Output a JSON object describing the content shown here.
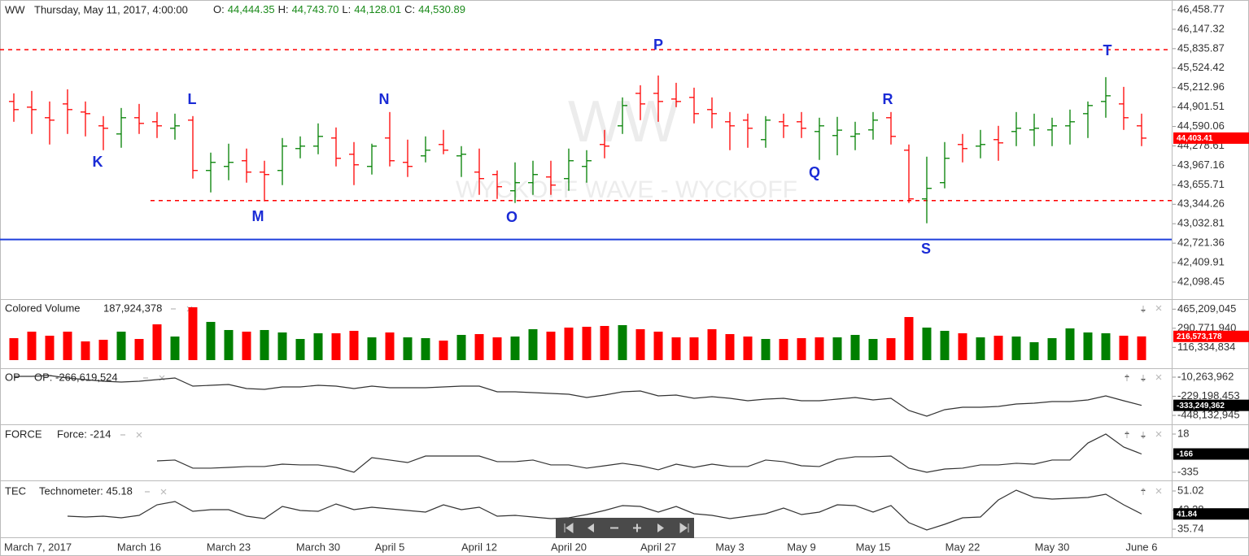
{
  "chart_data": [
    {
      "type": "ohlc",
      "title": "WW",
      "subtitle": "Thursday, May 11, 2017, 4:00:00",
      "readout": [
        {
          "name": "O:",
          "text": "44,444.35"
        },
        {
          "name": "H:",
          "text": "44,743.70"
        },
        {
          "name": "L:",
          "text": "44,128.01"
        },
        {
          "name": "C:",
          "text": "44,530.89"
        }
      ],
      "watermark": [
        "WW",
        "WYCKOFF WAVE - WYCKOFF"
      ],
      "up_color": "#008000",
      "down_color": "#ff0000",
      "open": [
        44990,
        44899,
        44730,
        44951,
        44821,
        44600,
        44470,
        44730,
        44665,
        44561,
        44691,
        43885,
        43950,
        44041,
        43859,
        43885,
        44236,
        44275,
        44405,
        44145,
        43950,
        44405,
        44015,
        44119,
        44301,
        44119,
        43859,
        43820,
        43560,
        43690,
        43781,
        43755,
        43950,
        44301,
        44600,
        45120,
        45120,
        45029,
        45055,
        44860,
        44665,
        44691,
        44379,
        44665,
        44665,
        44509,
        44444.35,
        44431,
        44535,
        44730,
        44210,
        43430,
        43690,
        44301,
        44275,
        44379,
        44509,
        44535,
        44535,
        44600,
        44795,
        44990,
        44951,
        44600
      ],
      "high": [
        45120,
        45159,
        44990,
        45185,
        44990,
        44756,
        44886,
        44951,
        44821,
        44795,
        44756,
        44171,
        44314,
        44236,
        44041,
        44405,
        44431,
        44639,
        44574,
        44340,
        44314,
        44821,
        44379,
        44431,
        44535,
        44275,
        44236,
        43885,
        44015,
        44041,
        44041,
        44236,
        44210,
        44535,
        45055,
        45250,
        45406,
        45289,
        45211,
        45055,
        44821,
        44795,
        44756,
        44795,
        44821,
        44730,
        44743.7,
        44665,
        44821,
        44821,
        44301,
        44106,
        44340,
        44470,
        44535,
        44600,
        44821,
        44795,
        44730,
        44860,
        44990,
        45380,
        45224,
        44795
      ],
      "low": [
        44665,
        44470,
        44301,
        44470,
        44431,
        44210,
        44249,
        44470,
        44405,
        44379,
        43755,
        43534,
        43729,
        43690,
        43391,
        43651,
        44080,
        44145,
        43950,
        43651,
        43820,
        43950,
        43781,
        44015,
        44145,
        43781,
        43495,
        43430,
        43365,
        43495,
        43495,
        43560,
        43690,
        44080,
        44470,
        44691,
        44665,
        44899,
        44639,
        44561,
        44210,
        44249,
        44249,
        44405,
        44405,
        44054,
        44128.01,
        44210,
        44379,
        44301,
        43365,
        43040,
        43599,
        44015,
        44080,
        44041,
        44275,
        44275,
        44275,
        44301,
        44405,
        44730,
        44535,
        44275
      ],
      "close": [
        44860,
        44860,
        44691,
        44860,
        44795,
        44561,
        44730,
        44639,
        44600,
        44600,
        43885,
        44015,
        44015,
        43859,
        43820,
        44275,
        44275,
        44431,
        44080,
        43976,
        44275,
        44041,
        43950,
        44210,
        44210,
        44145,
        43755,
        43625,
        43690,
        43820,
        43651,
        44041,
        44041,
        44275,
        44925,
        44951,
        44990,
        44990,
        44795,
        44795,
        44600,
        44561,
        44691,
        44600,
        44561,
        44600,
        44530.89,
        44470,
        44691,
        44431,
        43430,
        43599,
        44080,
        44236,
        44301,
        44327,
        44561,
        44561,
        44600,
        44665,
        44925,
        45081,
        44730,
        44403.41
      ],
      "last_label": "44,403.41",
      "last_color": "#ff0000",
      "hlines": [
        {
          "value": 45820,
          "color": "#ff0000",
          "dashed": true
        },
        {
          "value": 43404,
          "color": "#ff0000",
          "dashed": true
        },
        {
          "value": 42780,
          "color": "#1f3fdc",
          "dashed": false
        }
      ],
      "annotations": [
        "K",
        "L",
        "M",
        "N",
        "O",
        "P",
        "Q",
        "R",
        "S",
        "T"
      ],
      "ylim": [
        41838.1,
        46614.96
      ],
      "yticks": [
        {
          "value": 46458.77,
          "label": "46,458.77"
        },
        {
          "value": 46147.32,
          "label": "46,147.32"
        },
        {
          "value": 45835.87,
          "label": "45,835.87"
        },
        {
          "value": 45524.42,
          "label": "45,524.42"
        },
        {
          "value": 45212.96,
          "label": "45,212.96"
        },
        {
          "value": 44901.51,
          "label": "44,901.51"
        },
        {
          "value": 44590.06,
          "label": "44,590.06"
        },
        {
          "value": 44278.61,
          "label": "44,278.61"
        },
        {
          "value": 43967.16,
          "label": "43,967.16"
        },
        {
          "value": 43655.71,
          "label": "43,655.71"
        },
        {
          "value": 43344.26,
          "label": "43,344.26"
        },
        {
          "value": 43032.81,
          "label": "43,032.81"
        },
        {
          "value": 42721.36,
          "label": "42,721.36"
        },
        {
          "value": 42409.91,
          "label": "42,409.91"
        },
        {
          "value": 42098.45,
          "label": "42,098.45"
        }
      ]
    },
    {
      "type": "bar",
      "title": "Colored Volume",
      "readout": "187,924,378",
      "values": [
        200400000,
        259800000,
        222700000,
        259800000,
        170700000,
        185600000,
        259800000,
        193000000,
        326600000,
        215300000,
        482500000,
        348900000,
        274700000,
        259800000,
        274700000,
        252400000,
        193000000,
        245000000,
        245000000,
        267200000,
        207800000,
        252400000,
        207800000,
        200400000,
        178200000,
        230100000,
        237500000,
        207800000,
        215300000,
        282100000,
        259800000,
        296900000,
        304300000,
        311800000,
        319200000,
        282100000,
        259800000,
        207800000,
        207800000,
        282100000,
        237500000,
        215300000,
        193000000,
        193000000,
        200400000,
        207800000,
        207800000,
        230100000,
        193000000,
        200400000,
        393400000,
        296900000,
        267200000,
        245000000,
        207800000,
        222700000,
        215300000,
        163300000,
        200400000,
        289500000,
        252400000,
        245000000,
        222700000,
        216573178
      ],
      "colors": [
        "#ff0000",
        "#ff0000",
        "#ff0000",
        "#ff0000",
        "#ff0000",
        "#ff0000",
        "#008000",
        "#ff0000",
        "#ff0000",
        "#008000",
        "#ff0000",
        "#008000",
        "#008000",
        "#ff0000",
        "#008000",
        "#008000",
        "#008000",
        "#008000",
        "#ff0000",
        "#ff0000",
        "#008000",
        "#ff0000",
        "#008000",
        "#008000",
        "#ff0000",
        "#008000",
        "#ff0000",
        "#ff0000",
        "#008000",
        "#008000",
        "#ff0000",
        "#ff0000",
        "#ff0000",
        "#ff0000",
        "#008000",
        "#ff0000",
        "#ff0000",
        "#ff0000",
        "#ff0000",
        "#ff0000",
        "#ff0000",
        "#ff0000",
        "#008000",
        "#ff0000",
        "#ff0000",
        "#ff0000",
        "#008000",
        "#008000",
        "#008000",
        "#ff0000",
        "#ff0000",
        "#008000",
        "#008000",
        "#ff0000",
        "#008000",
        "#ff0000",
        "#008000",
        "#008000",
        "#008000",
        "#008000",
        "#008000",
        "#008000",
        "#ff0000",
        "#ff0000"
      ],
      "last_label": "216,573,178",
      "last_color": "#ff0000",
      "ylim": [
        -66800000,
        541900000
      ],
      "yticks": [
        {
          "value": 465209045,
          "label": "465,209,045"
        },
        {
          "value": 290771940,
          "label": "290,771,940"
        },
        {
          "value": 116334834,
          "label": "116,334,834"
        }
      ]
    },
    {
      "type": "line",
      "title": "OP",
      "readout": "OP: -266,619,524",
      "color": "#333333",
      "values": [
        -950000,
        -950000,
        8370000,
        -19580000,
        -38210000,
        -56840000,
        -66160000,
        -56840000,
        -38210000,
        -19580000,
        -112740000,
        -103420000,
        -94110000,
        -140690000,
        -150010000,
        -122060000,
        -122060000,
        -103420000,
        -112740000,
        -140690000,
        -112740000,
        -131370000,
        -131370000,
        -131370000,
        -122060000,
        -112740000,
        -112740000,
        -177950000,
        -177950000,
        -187270000,
        -196590000,
        -205900000,
        -243170000,
        -215220000,
        -177950000,
        -168640000,
        -224540000,
        -215220000,
        -252480000,
        -233850000,
        -252480000,
        -280430000,
        -261800000,
        -252480000,
        -280430000,
        -280430000,
        -261800000,
        -243170000,
        -271110000,
        -252480000,
        -392220000,
        -457430000,
        -382900000,
        -354950000,
        -354950000,
        -345640000,
        -317690000,
        -308370000,
        -289740000,
        -289740000,
        -271110000,
        -224540000,
        -280430000,
        -333249362
      ],
      "last_label": "-333,249,362",
      "last_color": "#000000",
      "ylim": [
        -541300000,
        73600000
      ],
      "yticks": [
        {
          "value": -10263962,
          "label": "-10,263,962"
        },
        {
          "value": -229198453,
          "label": "-229,198,453"
        },
        {
          "value": -448132945,
          "label": "-448,132,945"
        }
      ]
    },
    {
      "type": "line",
      "title": "FORCE",
      "readout": "Force: -214",
      "color": "#333333",
      "values": [
        null,
        null,
        null,
        null,
        null,
        null,
        null,
        null,
        -230,
        -222,
        -297,
        -297,
        -290,
        -282,
        -282,
        -260,
        -267,
        -267,
        -290,
        -335,
        -200,
        -222,
        -245,
        -185,
        -185,
        -185,
        -185,
        -237,
        -237,
        -222,
        -267,
        -267,
        -297,
        -275,
        -252,
        -275,
        -312,
        -260,
        -290,
        -260,
        -282,
        -282,
        -222,
        -237,
        -275,
        -282,
        -215,
        -192,
        -192,
        -185,
        -297,
        -335,
        -305,
        -297,
        -267,
        -267,
        -252,
        -260,
        -222,
        -222,
        -65,
        18,
        -102,
        -166
      ],
      "last_label": "-166",
      "last_color": "#000000",
      "ylim": [
        -402.6,
        100.6
      ],
      "yticks": [
        18,
        -335
      ]
    },
    {
      "type": "line",
      "title": "TEC",
      "readout": "Technometer: 45.18",
      "color": "#333333",
      "values": [
        null,
        null,
        null,
        40.94,
        40.62,
        40.94,
        40.29,
        41.27,
        45.49,
        46.79,
        42.89,
        43.54,
        43.54,
        40.94,
        39.97,
        44.84,
        43.22,
        42.89,
        45.82,
        43.54,
        44.52,
        43.87,
        43.22,
        42.57,
        45.49,
        43.54,
        44.52,
        40.94,
        41.27,
        40.62,
        39.97,
        40.29,
        41.59,
        43.22,
        45.17,
        44.84,
        42.57,
        44.84,
        41.92,
        41.27,
        39.97,
        40.94,
        41.92,
        44.19,
        41.59,
        42.57,
        45.49,
        45.17,
        42.57,
        45.17,
        38.34,
        35.42,
        37.69,
        40.29,
        40.62,
        47.44,
        51.34,
        48.42,
        47.77,
        48.09,
        48.42,
        49.72,
        45.49,
        41.84
      ],
      "last_label": "41.84",
      "last_color": "#000000",
      "ylim": [
        32.81,
        54.6
      ],
      "yticks": [
        51.02,
        43.38,
        35.74
      ],
      "categories": [
        "March 7, 2017",
        null,
        null,
        null,
        null,
        null,
        null,
        "March 16",
        null,
        null,
        null,
        null,
        "March 23",
        null,
        null,
        null,
        null,
        "March 30",
        null,
        null,
        null,
        "April 5",
        null,
        null,
        null,
        null,
        "April 12",
        null,
        null,
        null,
        null,
        "April 20",
        null,
        null,
        null,
        null,
        "April 27",
        null,
        null,
        null,
        "May 3",
        null,
        null,
        null,
        "May 9",
        null,
        null,
        null,
        "May 15",
        null,
        null,
        null,
        null,
        "May 22",
        null,
        null,
        null,
        null,
        "May 30",
        null,
        null,
        null,
        null,
        "June 6"
      ]
    }
  ]
}
